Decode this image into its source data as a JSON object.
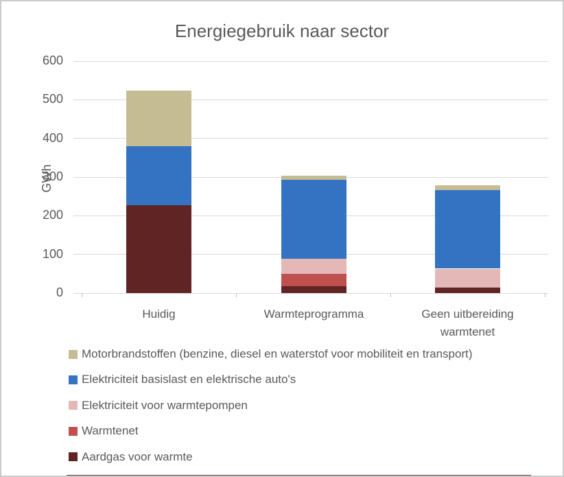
{
  "chart_data": {
    "type": "bar",
    "stacked": true,
    "title": "Energiegebruik naar sector",
    "xlabel": "",
    "ylabel": "GWh",
    "ylim": [
      0,
      600
    ],
    "yticks": [
      0,
      100,
      200,
      300,
      400,
      500,
      600
    ],
    "grid": true,
    "legend_position": "bottom-left",
    "categories": [
      "Huidig",
      "Warmteprogramma",
      "Geen uitbereiding warmtenet"
    ],
    "series": [
      {
        "name": "Aardgas voor warmte",
        "color": "#5f2423",
        "values": [
          228,
          18,
          15
        ]
      },
      {
        "name": "Warmtenet",
        "color": "#c0504d",
        "values": [
          0,
          32,
          0
        ]
      },
      {
        "name": "Elektriciteit voor warmtepompen",
        "color": "#e5b8b8",
        "values": [
          0,
          38,
          48
        ]
      },
      {
        "name": "Elektriciteit basislast en elektrische auto's",
        "color": "#3473c2",
        "values": [
          152,
          205,
          203
        ]
      },
      {
        "name": "Motorbrandstoffen (benzine, diesel en waterstof  voor mobiliteit en transport)",
        "color": "#c5bc93",
        "values": [
          144,
          11,
          12
        ]
      }
    ],
    "totals": [
      524,
      304,
      278
    ],
    "legend_order": "top of stack listed first",
    "colors": {
      "title_text": "#595959",
      "axis_text": "#595959",
      "gridline": "#d9d9d9",
      "border": "#cbcbcb"
    }
  }
}
